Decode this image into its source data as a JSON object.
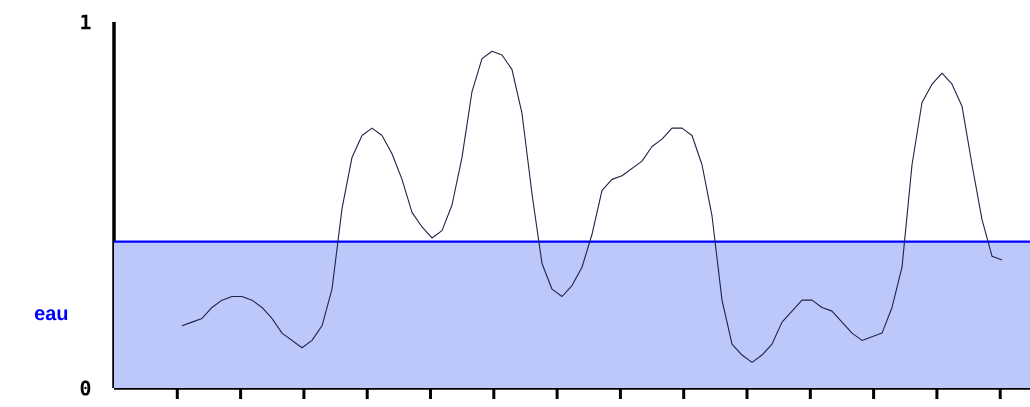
{
  "chart_data": {
    "type": "line",
    "categories": [
      null,
      null,
      null,
      null,
      null,
      null,
      null,
      null,
      null,
      null,
      null,
      null,
      null,
      null,
      null,
      null,
      null,
      null,
      null,
      null,
      null,
      null,
      null,
      null,
      null,
      null,
      null,
      null,
      null,
      null,
      null,
      null,
      null,
      null,
      null,
      null,
      null,
      null,
      null,
      null,
      null,
      null,
      null,
      null,
      null,
      null,
      null,
      null,
      null,
      null,
      null,
      null,
      null,
      null,
      null,
      null,
      null,
      null,
      null,
      null,
      null,
      null,
      null,
      null,
      null,
      null,
      null,
      null,
      null,
      null,
      null,
      null,
      null,
      null,
      null,
      null,
      null,
      null,
      null,
      null,
      null,
      null,
      null
    ],
    "series": [
      {
        "color": "#222244",
        "values": [
          0.17,
          0.18,
          0.19,
          0.22,
          0.24,
          0.25,
          0.25,
          0.24,
          0.22,
          0.19,
          0.15,
          0.13,
          0.11,
          0.13,
          0.17,
          0.27,
          0.49,
          0.63,
          0.69,
          0.71,
          0.69,
          0.64,
          0.57,
          0.48,
          0.44,
          0.41,
          0.43,
          0.5,
          0.63,
          0.81,
          0.9,
          0.92,
          0.91,
          0.87,
          0.75,
          0.53,
          0.34,
          0.27,
          0.25,
          0.28,
          0.33,
          0.42,
          0.54,
          0.57,
          0.58,
          0.6,
          0.62,
          0.66,
          0.68,
          0.71,
          0.71,
          0.69,
          0.61,
          0.47,
          0.24,
          0.12,
          0.09,
          0.07,
          0.09,
          0.12,
          0.18,
          0.21,
          0.24,
          0.24,
          0.22,
          0.21,
          0.18,
          0.15,
          0.13,
          0.14,
          0.15,
          0.22,
          0.33,
          0.61,
          0.78,
          0.83,
          0.86,
          0.83,
          0.77,
          0.61,
          0.46,
          0.36,
          0.35
        ]
      }
    ],
    "ylim": [
      0,
      1
    ],
    "yticks": [
      {
        "value": 0,
        "label": "0"
      },
      {
        "value": 1,
        "label": "1"
      }
    ],
    "tick_labels": "y",
    "bands": [
      {
        "axis": "y",
        "from": 0,
        "to": 0.4,
        "label": "eau",
        "color": "#bcc8fa"
      }
    ],
    "ref_lines": [
      {
        "axis": "y",
        "value": 0.4,
        "color": "#0000ff"
      }
    ],
    "grid": false,
    "marker": "none",
    "line_style": "solid"
  }
}
